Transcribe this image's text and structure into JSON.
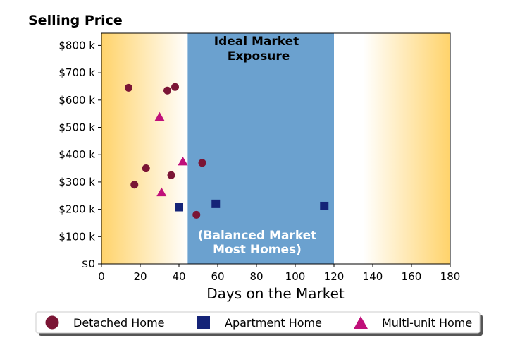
{
  "chart_data": {
    "type": "scatter",
    "title": "Selling Price",
    "xlabel": "Days on the Market",
    "ylabel": "",
    "xlim": [
      0,
      180
    ],
    "ylim": [
      0,
      845
    ],
    "x_ticks": [
      0,
      20,
      40,
      60,
      80,
      100,
      120,
      140,
      160,
      180
    ],
    "y_ticks": [
      0,
      100,
      200,
      300,
      400,
      500,
      600,
      700,
      800
    ],
    "y_tick_labels": [
      "$0",
      "$100 k",
      "$200 k",
      "$300 k",
      "$400 k",
      "$500 k",
      "$600 k",
      "$700 k",
      "$800 k"
    ],
    "grid": false,
    "legend_position": "bottom",
    "bands": [
      {
        "x_range": [
          44.5,
          120
        ],
        "color": "#4a8cc4",
        "label_top": "Ideal Market Exposure",
        "label_bottom": "(Balanced Market Most Homes)"
      }
    ],
    "background_gradient": {
      "edge_color": "#ffd36b",
      "center_color": "#ffffff"
    },
    "series": [
      {
        "name": "Detached Home",
        "marker": "circle",
        "color": "#7b1535",
        "points": [
          {
            "x": 14,
            "y": 645
          },
          {
            "x": 17,
            "y": 290
          },
          {
            "x": 23,
            "y": 350
          },
          {
            "x": 34,
            "y": 635
          },
          {
            "x": 36,
            "y": 325
          },
          {
            "x": 38,
            "y": 648
          },
          {
            "x": 49,
            "y": 180
          },
          {
            "x": 52,
            "y": 370
          }
        ]
      },
      {
        "name": "Apartment Home",
        "marker": "square",
        "color": "#152478",
        "points": [
          {
            "x": 40,
            "y": 208
          },
          {
            "x": 59,
            "y": 220
          },
          {
            "x": 115,
            "y": 212
          }
        ]
      },
      {
        "name": "Multi-unit Home",
        "marker": "triangle",
        "color": "#c0107a",
        "points": [
          {
            "x": 30,
            "y": 538
          },
          {
            "x": 31,
            "y": 262
          },
          {
            "x": 42,
            "y": 375
          }
        ]
      }
    ]
  }
}
